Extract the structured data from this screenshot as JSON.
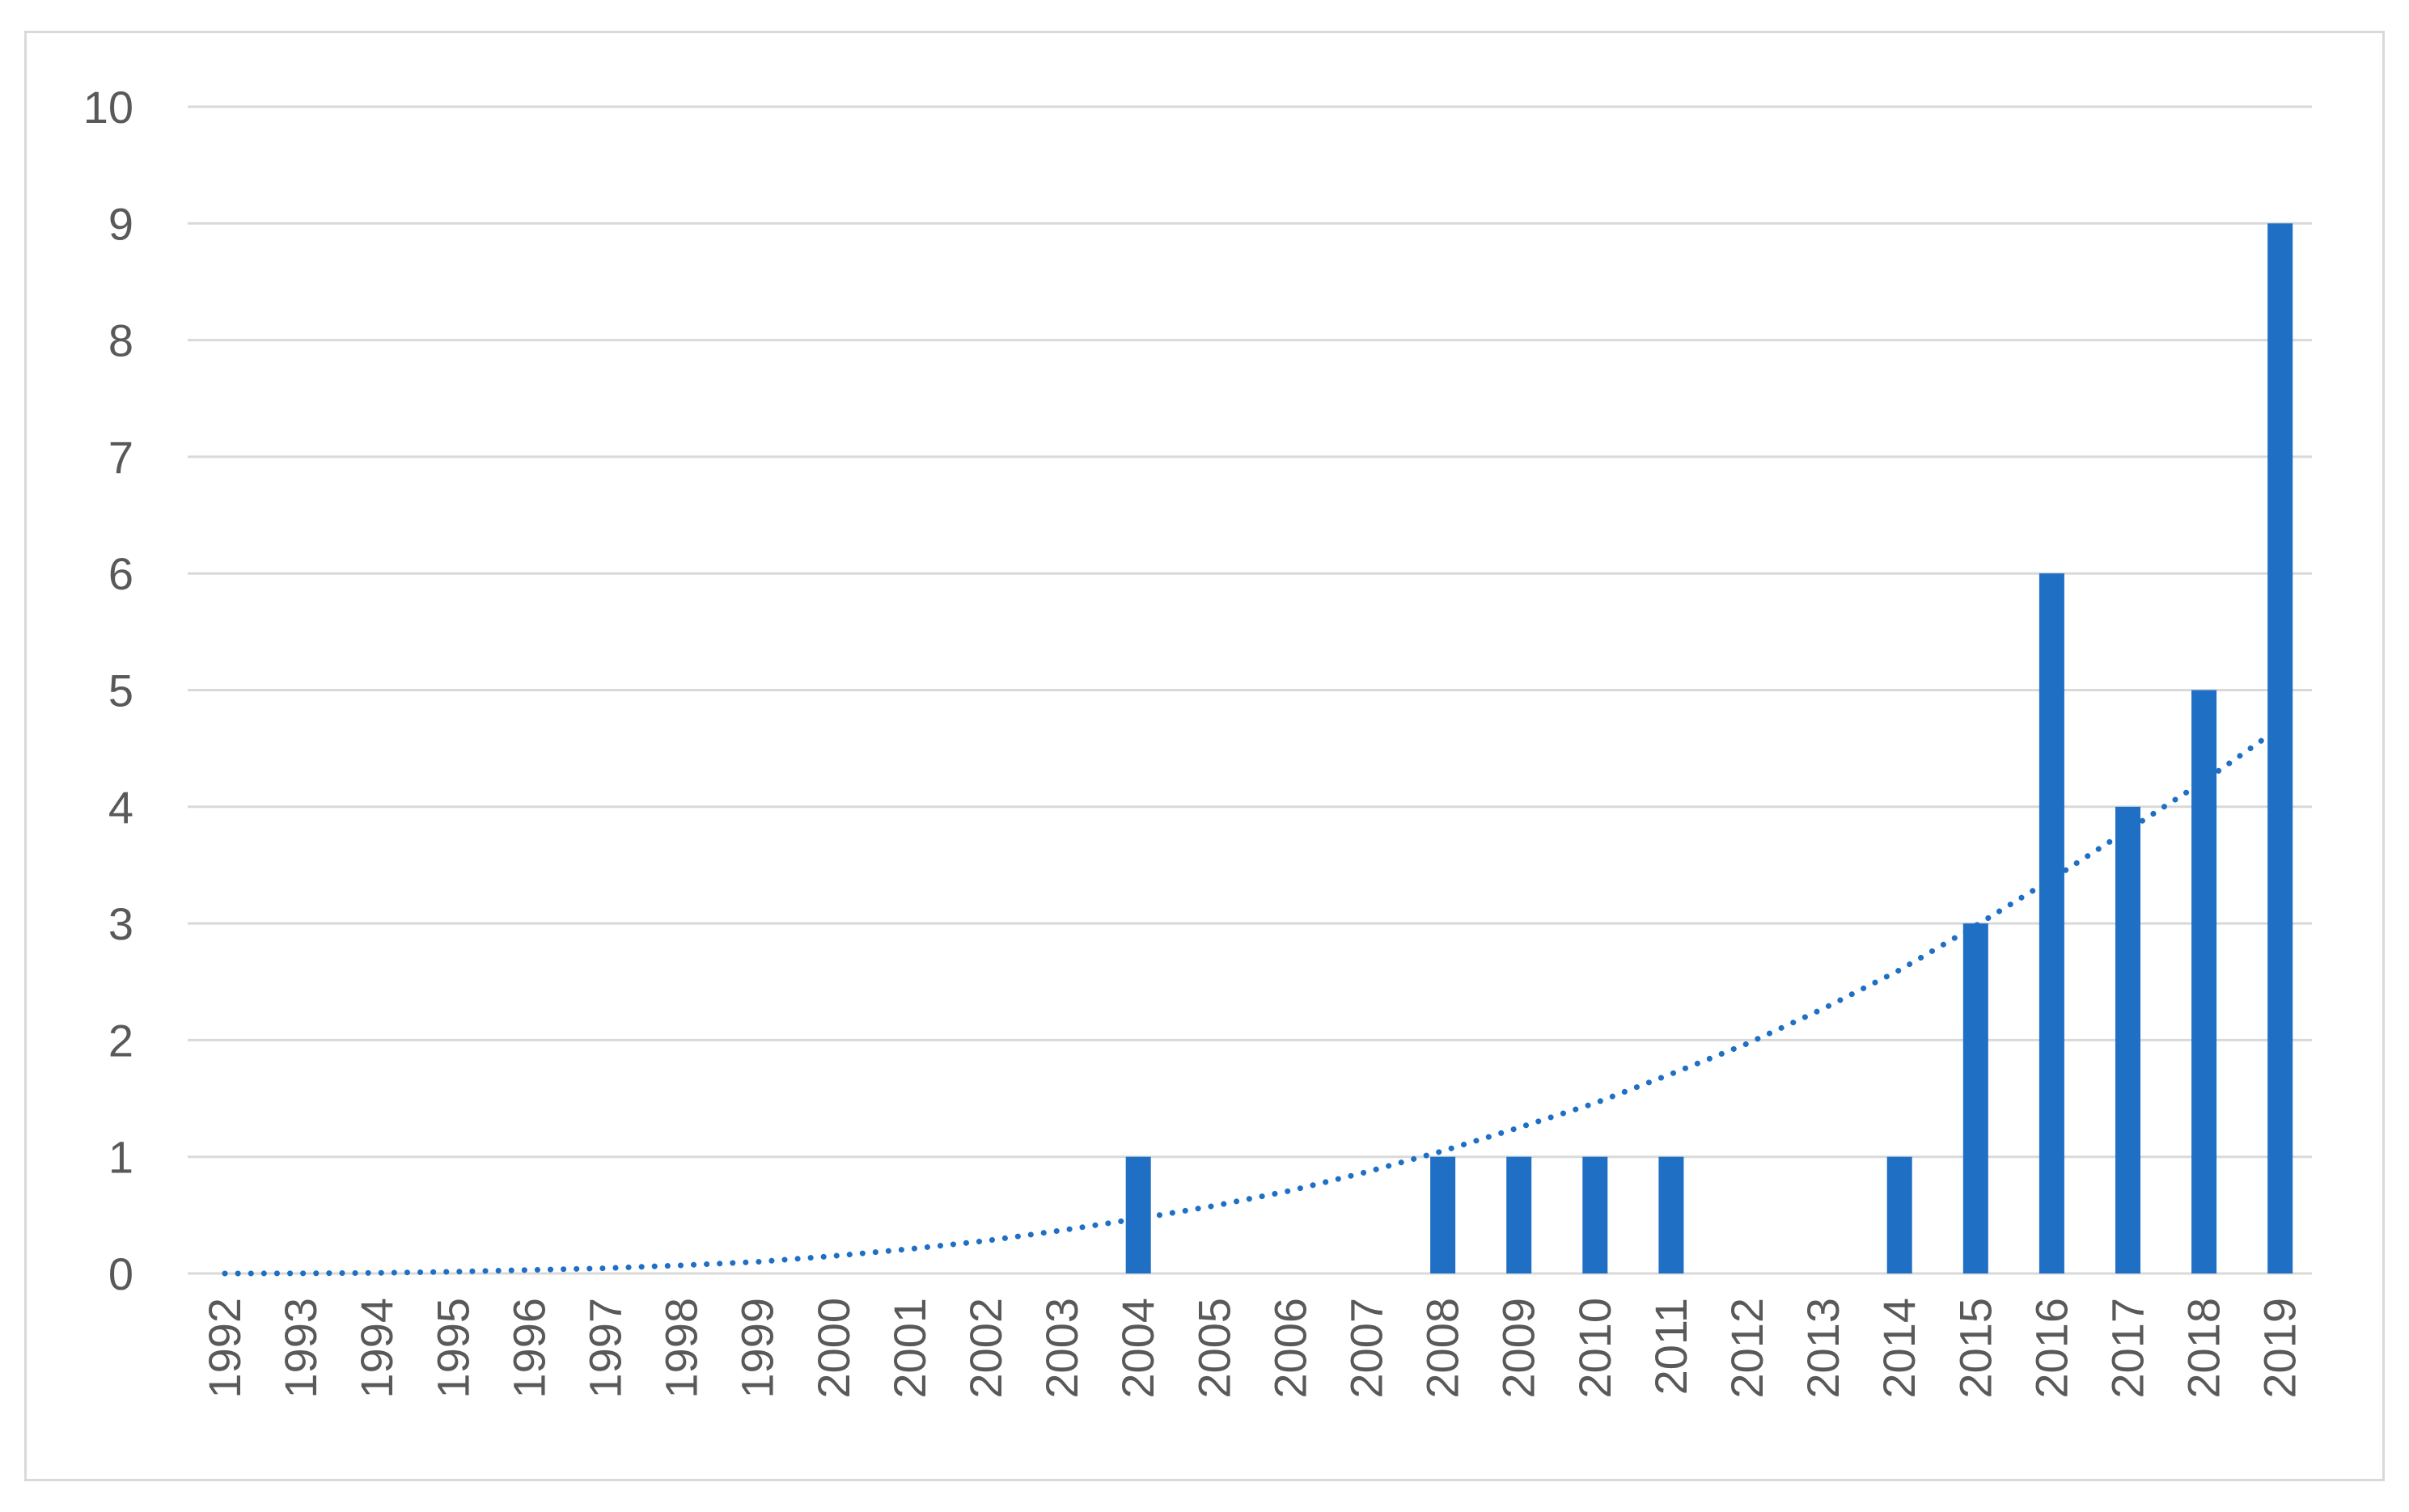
{
  "chart_data": {
    "type": "bar",
    "title": "",
    "xlabel": "",
    "ylabel": "",
    "categories": [
      "1992",
      "1993",
      "1994",
      "1995",
      "1996",
      "1997",
      "1998",
      "1999",
      "2000",
      "2001",
      "2002",
      "2003",
      "2004",
      "2005",
      "2006",
      "2007",
      "2008",
      "2009",
      "2010",
      "2011",
      "2012",
      "2013",
      "2014",
      "2015",
      "2016",
      "2017",
      "2018",
      "2019"
    ],
    "series": [
      {
        "values": [
          0,
          0,
          0,
          0,
          0,
          0,
          0,
          0,
          0,
          0,
          0,
          0,
          1,
          0,
          0,
          0,
          1,
          1,
          1,
          1,
          0,
          0,
          1,
          3,
          6,
          4,
          5,
          9
        ],
        "color": "#1f6fc5"
      }
    ],
    "trendline": {
      "style": "dotted",
      "color": "#1f6fc5",
      "values": [
        0,
        0.001,
        0.005,
        0.015,
        0.03,
        0.045,
        0.07,
        0.1,
        0.15,
        0.21,
        0.28,
        0.37,
        0.47,
        0.58,
        0.71,
        0.87,
        1.05,
        1.25,
        1.46,
        1.71,
        1.97,
        2.27,
        2.6,
        2.98,
        3.38,
        3.8,
        4.22,
        4.68
      ]
    },
    "ylim": [
      0,
      10
    ],
    "yticks": [
      "0",
      "1",
      "2",
      "3",
      "4",
      "5",
      "6",
      "7",
      "8",
      "9",
      "10"
    ],
    "grid": true,
    "legend": "none",
    "gridline_color": "#d9d9d9",
    "tick_label_color": "#595959"
  }
}
